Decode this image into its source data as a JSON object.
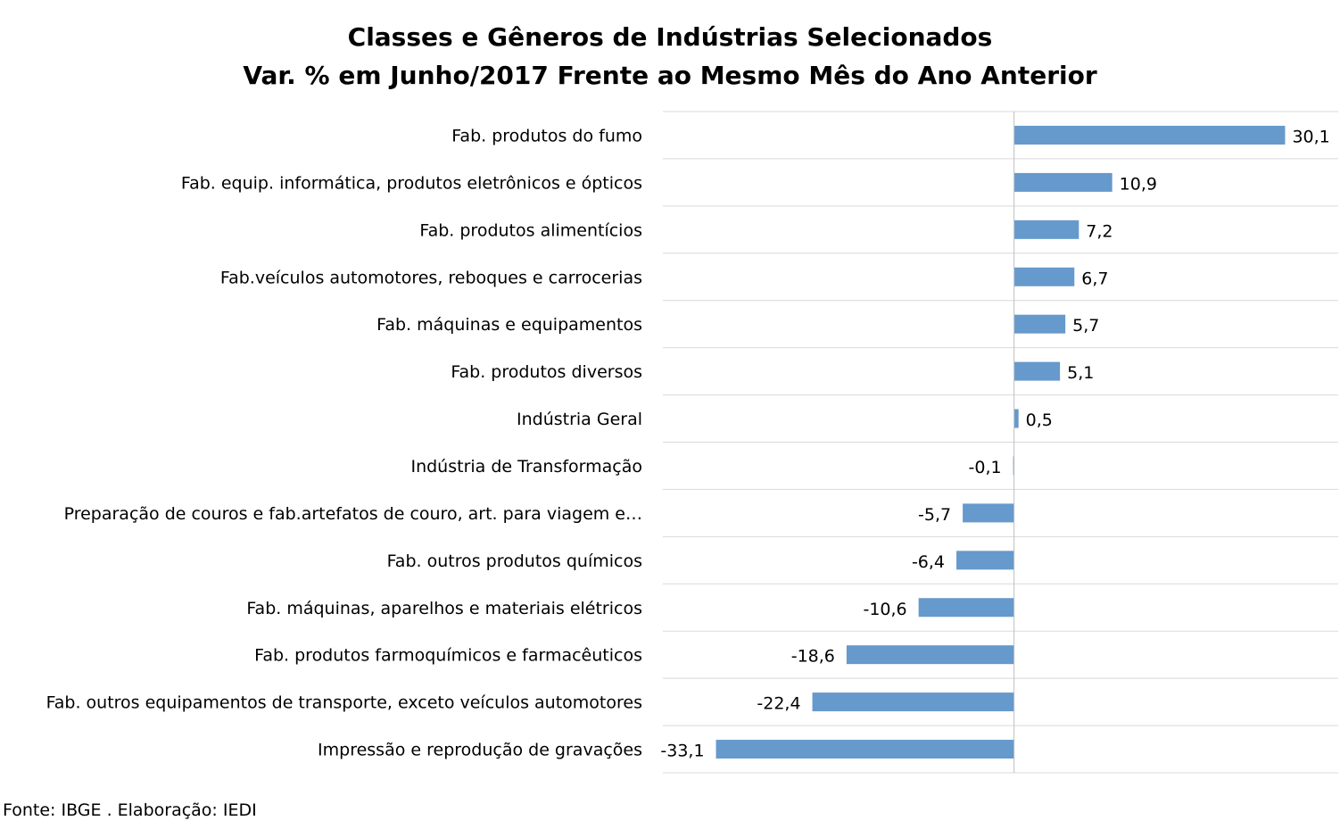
{
  "chart_data": {
    "type": "bar",
    "orientation": "horizontal",
    "title": [
      "Classes e Gêneros de Indústrias Selecionados",
      "Var. % em Junho/2017 Frente ao Mesmo Mês do Ano Anterior"
    ],
    "categories": [
      "Fab. produtos do fumo",
      "Fab. equip. informática, produtos eletrônicos e ópticos",
      "Fab. produtos alimentícios",
      "Fab.veículos automotores, reboques e carrocerias",
      "Fab. máquinas e equipamentos",
      "Fab. produtos diversos",
      "Indústria Geral",
      "Indústria de Transformação",
      "Preparação de couros e fab.artefatos de couro, art. para viagem e…",
      "Fab. outros produtos químicos",
      "Fab. máquinas, aparelhos e materiais elétricos",
      "Fab. produtos farmoquímicos e farmacêuticos",
      "Fab. outros equipamentos de transporte, exceto veículos automotores",
      "Impressão e reprodução de gravações"
    ],
    "values": [
      30.1,
      10.9,
      7.2,
      6.7,
      5.7,
      5.1,
      0.5,
      -0.1,
      -5.7,
      -6.4,
      -10.6,
      -18.6,
      -22.4,
      -33.1
    ],
    "value_labels": [
      "30,1",
      "10,9",
      "7,2",
      "6,7",
      "5,7",
      "5,1",
      "0,5",
      "-0,1",
      "-5,7",
      "-6,4",
      "-10,6",
      "-18,6",
      "-22,4",
      "-33,1"
    ],
    "xlim": [
      -39,
      36
    ],
    "grid": "horizontal separators between categories",
    "legend": "none",
    "bar_color": "#6699CC"
  },
  "source": "Fonte: IBGE . Elaboração: IEDI"
}
